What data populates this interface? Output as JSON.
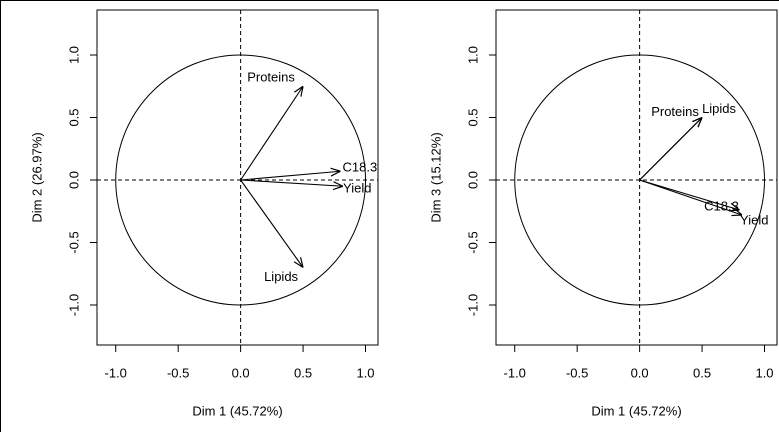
{
  "chart_data": [
    {
      "type": "correlation-circle",
      "xlabel": "Dim 1 (45.72%)",
      "ylabel": "Dim 2 (26.97%)",
      "xlim": [
        -1.15,
        1.1
      ],
      "ylim": [
        -1.32,
        1.36
      ],
      "xticks": [
        {
          "value": -1,
          "label": "-1.0"
        },
        {
          "value": -0.5,
          "label": "-0.5"
        },
        {
          "value": 0,
          "label": "0.0"
        },
        {
          "value": 0.5,
          "label": "0.5"
        },
        {
          "value": 1,
          "label": "1.0"
        }
      ],
      "yticks": [
        {
          "value": -1,
          "label": "-1.0"
        },
        {
          "value": -0.5,
          "label": "-0.5"
        },
        {
          "value": 0,
          "label": "0.0"
        },
        {
          "value": 0.5,
          "label": "0.5"
        },
        {
          "value": 1,
          "label": "1.0"
        }
      ],
      "variables": [
        {
          "name": "Proteins",
          "x": 0.5,
          "y": 0.75
        },
        {
          "name": "C18.3",
          "x": 0.8,
          "y": 0.07
        },
        {
          "name": "Yield",
          "x": 0.82,
          "y": -0.05
        },
        {
          "name": "Lipids",
          "x": 0.5,
          "y": -0.7
        }
      ]
    },
    {
      "type": "correlation-circle",
      "xlabel": "Dim 1 (45.72%)",
      "ylabel": "Dim 3 (15.12%)",
      "xlim": [
        -1.15,
        1.1
      ],
      "ylim": [
        -1.32,
        1.36
      ],
      "xticks": [
        {
          "value": -1,
          "label": "-1.0"
        },
        {
          "value": -0.5,
          "label": "-0.5"
        },
        {
          "value": 0,
          "label": "0.0"
        },
        {
          "value": 0.5,
          "label": "0.5"
        },
        {
          "value": 1,
          "label": "1.0"
        }
      ],
      "yticks": [
        {
          "value": -1,
          "label": "-1.0"
        },
        {
          "value": -0.5,
          "label": "-0.5"
        },
        {
          "value": 0,
          "label": "0.0"
        },
        {
          "value": 0.5,
          "label": "0.5"
        },
        {
          "value": 1,
          "label": "1.0"
        }
      ],
      "variables": [
        {
          "name": "Proteins",
          "x": 0.5,
          "y": 0.5
        },
        {
          "name": "Lipids",
          "x": 0.5,
          "y": 0.5
        },
        {
          "name": "C18.3",
          "x": 0.8,
          "y": -0.24
        },
        {
          "name": "Yield",
          "x": 0.82,
          "y": -0.28
        }
      ]
    }
  ]
}
